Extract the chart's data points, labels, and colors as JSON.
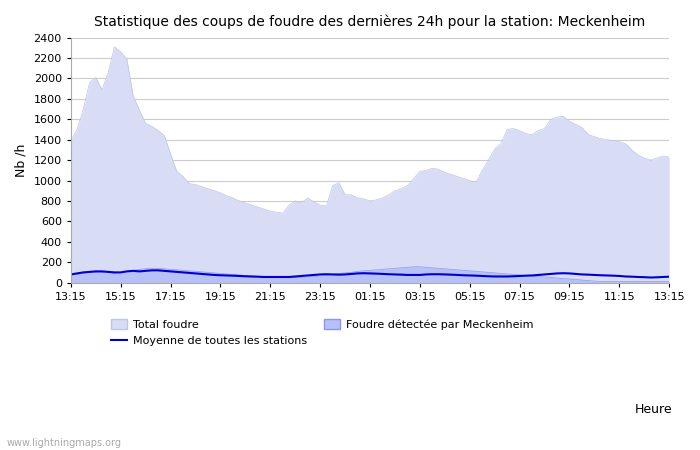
{
  "title": "Statistique des coups de foudre des dernières 24h pour la station: Meckenheim",
  "ylabel": "Nb /h",
  "xlabel": "Heure",
  "watermark": "www.lightningmaps.org",
  "ylim": [
    0,
    2400
  ],
  "yticks": [
    0,
    200,
    400,
    600,
    800,
    1000,
    1200,
    1400,
    1600,
    1800,
    2000,
    2200,
    2400
  ],
  "xtick_labels": [
    "13:15",
    "15:15",
    "17:15",
    "19:15",
    "21:15",
    "23:15",
    "01:15",
    "03:15",
    "05:15",
    "07:15",
    "09:15",
    "11:15",
    "13:15"
  ],
  "bg_color": "#ffffff",
  "plot_bg_color": "#ffffff",
  "grid_color": "#cccccc",
  "total_foudre_color": "#d8dcf4",
  "total_foudre_edge": "#c0c4e8",
  "meckenheim_color": "#b8c0f8",
  "meckenheim_edge": "#8898f0",
  "moyenne_color": "#0000cc",
  "legend_labels": [
    "Total foudre",
    "Moyenne de toutes les stations",
    "Foudre détectée par Meckenheim"
  ],
  "n_points": 97,
  "total_foudre": [
    1390,
    1500,
    1700,
    1960,
    2010,
    1890,
    2060,
    2310,
    2260,
    2190,
    1830,
    1690,
    1560,
    1530,
    1490,
    1440,
    1260,
    1090,
    1040,
    970,
    960,
    940,
    920,
    900,
    880,
    850,
    830,
    800,
    780,
    760,
    740,
    720,
    700,
    690,
    680,
    760,
    800,
    780,
    830,
    790,
    760,
    750,
    950,
    980,
    860,
    860,
    830,
    820,
    800,
    810,
    830,
    860,
    900,
    920,
    950,
    1020,
    1090,
    1100,
    1120,
    1110,
    1080,
    1060,
    1040,
    1020,
    1000,
    980,
    1100,
    1200,
    1310,
    1360,
    1500,
    1510,
    1490,
    1460,
    1450,
    1490,
    1510,
    1600,
    1620,
    1630,
    1580,
    1550,
    1520,
    1450,
    1430,
    1410,
    1400,
    1390,
    1380,
    1360,
    1300,
    1250,
    1220,
    1200,
    1220,
    1240,
    1230
  ],
  "meckenheim": [
    70,
    80,
    90,
    100,
    100,
    100,
    95,
    90,
    100,
    110,
    120,
    130,
    135,
    140,
    140,
    135,
    130,
    125,
    120,
    115,
    110,
    105,
    100,
    95,
    90,
    85,
    80,
    75,
    70,
    65,
    62,
    60,
    58,
    55,
    52,
    50,
    50,
    50,
    55,
    60,
    65,
    70,
    80,
    90,
    95,
    100,
    110,
    115,
    120,
    125,
    130,
    135,
    140,
    145,
    150,
    155,
    155,
    150,
    145,
    140,
    135,
    130,
    125,
    120,
    115,
    110,
    105,
    100,
    95,
    90,
    85,
    80,
    75,
    70,
    65,
    60,
    55,
    50,
    45,
    40,
    35,
    30,
    25,
    20,
    15,
    10,
    10,
    10,
    10,
    10,
    10,
    10,
    10,
    10,
    10,
    10,
    10
  ],
  "moyenne": [
    80,
    90,
    100,
    105,
    110,
    110,
    105,
    100,
    100,
    110,
    115,
    110,
    115,
    120,
    120,
    115,
    110,
    105,
    100,
    95,
    90,
    85,
    80,
    75,
    72,
    70,
    68,
    65,
    62,
    60,
    58,
    55,
    55,
    55,
    55,
    55,
    60,
    65,
    70,
    75,
    80,
    82,
    80,
    78,
    80,
    85,
    90,
    92,
    90,
    88,
    85,
    82,
    80,
    78,
    75,
    75,
    75,
    80,
    82,
    82,
    80,
    78,
    75,
    72,
    70,
    68,
    65,
    62,
    60,
    60,
    60,
    62,
    65,
    68,
    70,
    75,
    80,
    85,
    90,
    92,
    90,
    85,
    80,
    78,
    75,
    72,
    70,
    68,
    65,
    60,
    58,
    55,
    53,
    50,
    52,
    55,
    58
  ]
}
